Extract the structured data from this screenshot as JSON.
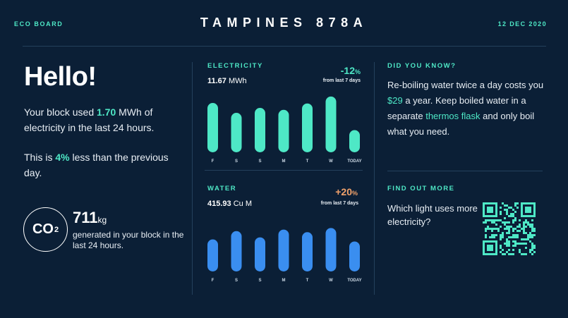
{
  "header": {
    "brand": "ECO BOARD",
    "title": "TAMPINES 878A",
    "date": "12 DEC 2020"
  },
  "greeting": {
    "title": "Hello!",
    "usage_prefix": "Your block used ",
    "usage_value": "1.70",
    "usage_suffix": " MWh of electricity in the last 24 hours.",
    "compare_prefix": "This is ",
    "compare_value": "4%",
    "compare_suffix": " less than the previous day."
  },
  "co2": {
    "symbol": "CO",
    "subscript": "2",
    "value": "711",
    "unit": "kg",
    "description": "generated in your block in the last 24 hours."
  },
  "colors": {
    "background": "#0b1f36",
    "accent": "#4ee8c6",
    "electricity_bar": "#4ee8c6",
    "water_bar": "#3a8ef0",
    "increase": "#f2a26b"
  },
  "electricity": {
    "label": "ELECTRICITY",
    "value": "11.67",
    "unit": " MWh",
    "change": "-12",
    "change_unit": "%",
    "change_note": "from last 7 days"
  },
  "water": {
    "label": "WATER",
    "value": "415.93",
    "unit": " Cu M",
    "change": "+20",
    "change_unit": "%",
    "change_note": "from last 7 days"
  },
  "chart_data": [
    {
      "type": "bar",
      "title": "ELECTRICITY",
      "categories": [
        "F",
        "S",
        "S",
        "M",
        "T",
        "W",
        "TODAY"
      ],
      "values": [
        100,
        80,
        90,
        86,
        99,
        113,
        45
      ],
      "ylim": [
        0,
        120
      ]
    },
    {
      "type": "bar",
      "title": "WATER",
      "categories": [
        "F",
        "S",
        "S",
        "M",
        "T",
        "W",
        "TODAY"
      ],
      "values": [
        62,
        78,
        66,
        81,
        76,
        84,
        58
      ],
      "ylim": [
        0,
        90
      ]
    }
  ],
  "tip": {
    "label": "DID YOU KNOW?",
    "part1": "Re-boiling water twice a day costs you ",
    "highlight1": "$29",
    "part2": " a year. Keep boiled water in a separate ",
    "highlight2": "thermos flask",
    "part3": " and only boil what you need."
  },
  "more": {
    "label": "FIND OUT MORE",
    "text": "Which light uses more electricity?",
    "qr_icon": "qr-code-icon"
  }
}
